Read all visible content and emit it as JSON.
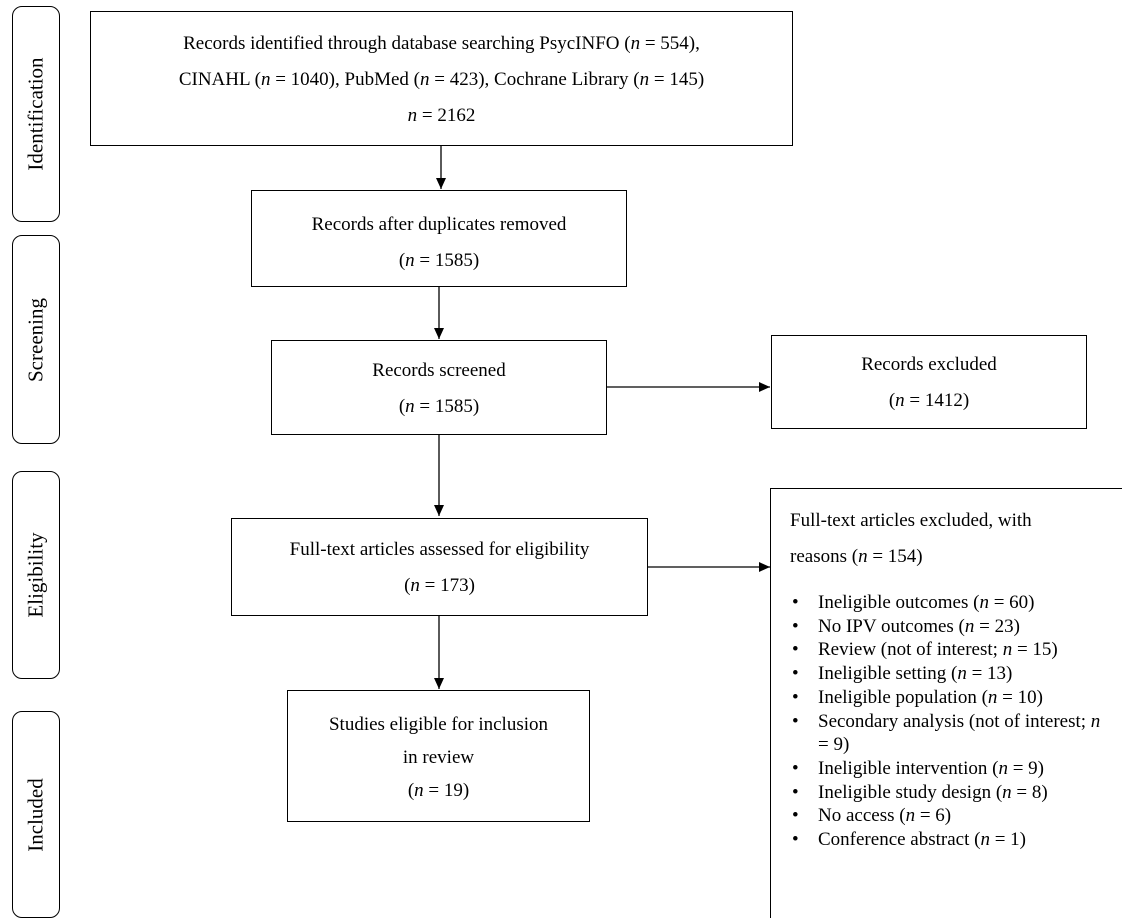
{
  "stages": {
    "identification": "Identification",
    "screening": "Screening",
    "eligibility": "Eligibility",
    "included": "Included"
  },
  "boxes": {
    "identified": {
      "line1": "Records identified through database searching PsycINFO (n = 554),",
      "line2": "CINAHL (n = 1040), PubMed (n = 423), Cochrane Library (n = 145)",
      "line3": "n = 2162"
    },
    "deduplicated": {
      "line1": "Records after duplicates removed",
      "line2": "(n = 1585)"
    },
    "screened": {
      "line1": "Records screened",
      "line2": "(n = 1585)"
    },
    "excluded": {
      "line1": "Records excluded",
      "line2": "(n = 1412)"
    },
    "fulltext": {
      "line1": "Full-text articles assessed for eligibility",
      "line2": "(n = 173)"
    },
    "included": {
      "line1": "Studies eligible for inclusion",
      "line2": "in review",
      "line3": "(n = 19)"
    }
  },
  "fulltext_excluded": {
    "header1": "Full-text articles excluded, with",
    "header2": "reasons (n = 154)",
    "reasons": [
      "Ineligible outcomes (n = 60)",
      "No IPV outcomes (n = 23)",
      "Review (not of interest; n = 15)",
      "Ineligible setting (n = 13)",
      "Ineligible population (n = 10)",
      "Secondary analysis (not of interest; n = 9)",
      "Ineligible intervention (n = 9)",
      "Ineligible study design (n = 8)",
      "No access (n = 6)",
      "Conference abstract (n = 1)"
    ]
  }
}
